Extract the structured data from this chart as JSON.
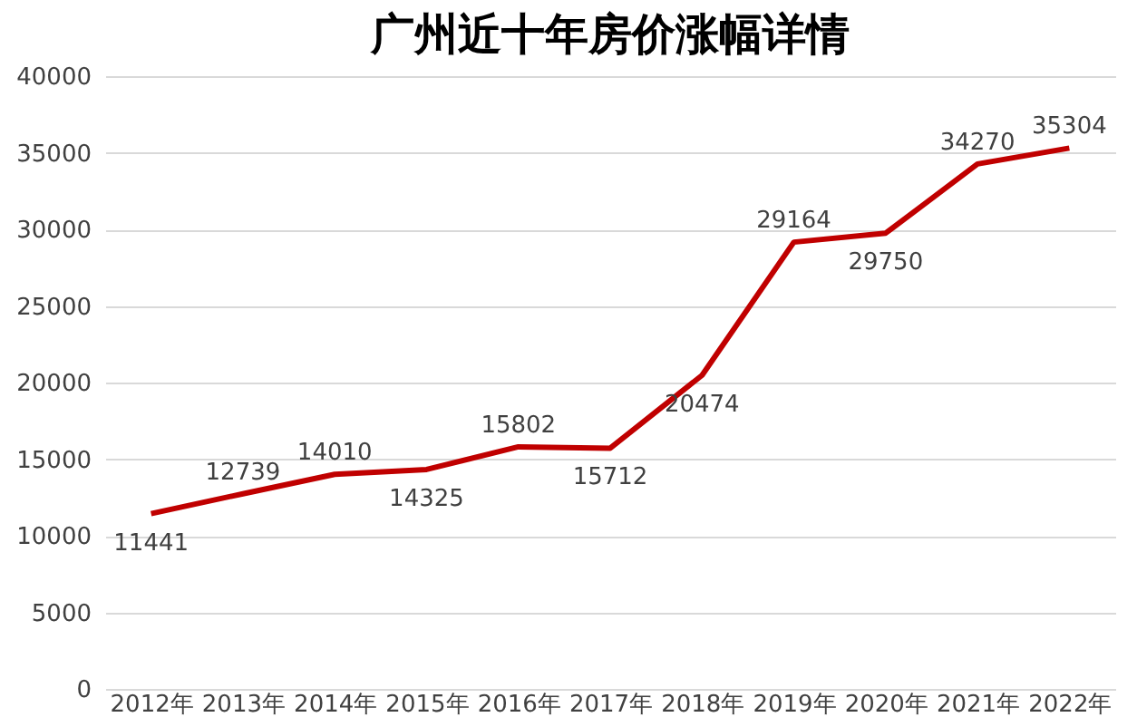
{
  "chart_data": {
    "type": "line",
    "title": "广州近十年房价涨幅详情",
    "categories": [
      "2012年",
      "2013年",
      "2014年",
      "2015年",
      "2016年",
      "2017年",
      "2018年",
      "2019年",
      "2020年",
      "2021年",
      "2022年"
    ],
    "series": [
      {
        "color": "#c00000",
        "values": [
          11441,
          12739,
          14010,
          14325,
          15802,
          15712,
          20474,
          29164,
          29750,
          34270,
          35304
        ]
      }
    ],
    "ylim": [
      0,
      40000
    ],
    "yticks": [
      0,
      5000,
      10000,
      15000,
      20000,
      25000,
      30000,
      35000,
      40000
    ],
    "grid": "y",
    "legend": false,
    "data_labels": true,
    "marker": "none",
    "line_style": "solid"
  }
}
